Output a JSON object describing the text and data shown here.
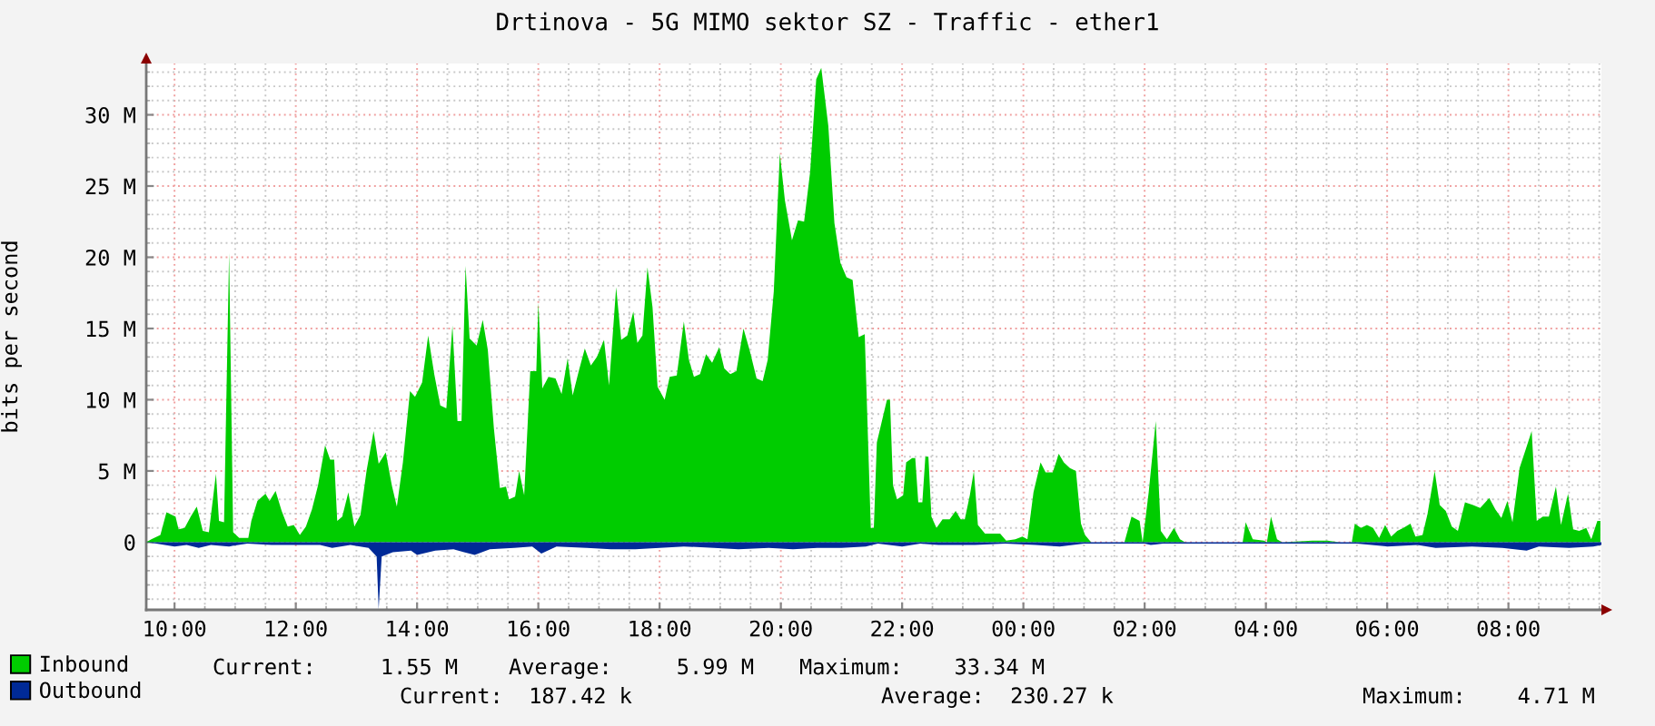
{
  "chart_data": {
    "type": "area",
    "title": "Drtinova - 5G MIMO sektor SZ - Traffic - ether1",
    "ylabel": "bits per second",
    "xlim": [
      "2000-01-01T09:32",
      "2000-01-02T09:32"
    ],
    "ylim": [
      -4.75,
      33.6
    ],
    "xticks": [
      {
        "value": "2000-01-01T10:00",
        "label": "10:00"
      },
      {
        "value": "2000-01-01T10:30",
        "label": null
      },
      {
        "value": "2000-01-01T11:00",
        "label": null
      },
      {
        "value": "2000-01-01T11:30",
        "label": null
      },
      {
        "value": "2000-01-01T12:00",
        "label": "12:00"
      },
      {
        "value": "2000-01-01T12:30",
        "label": null
      },
      {
        "value": "2000-01-01T13:00",
        "label": null
      },
      {
        "value": "2000-01-01T13:30",
        "label": null
      },
      {
        "value": "2000-01-01T14:00",
        "label": "14:00"
      },
      {
        "value": "2000-01-01T14:30",
        "label": null
      },
      {
        "value": "2000-01-01T15:00",
        "label": null
      },
      {
        "value": "2000-01-01T15:30",
        "label": null
      },
      {
        "value": "2000-01-01T16:00",
        "label": "16:00"
      },
      {
        "value": "2000-01-01T16:30",
        "label": null
      },
      {
        "value": "2000-01-01T17:00",
        "label": null
      },
      {
        "value": "2000-01-01T17:30",
        "label": null
      },
      {
        "value": "2000-01-01T18:00",
        "label": "18:00"
      },
      {
        "value": "2000-01-01T18:30",
        "label": null
      },
      {
        "value": "2000-01-01T19:00",
        "label": null
      },
      {
        "value": "2000-01-01T19:30",
        "label": null
      },
      {
        "value": "2000-01-01T20:00",
        "label": "20:00"
      },
      {
        "value": "2000-01-01T20:30",
        "label": null
      },
      {
        "value": "2000-01-01T21:00",
        "label": null
      },
      {
        "value": "2000-01-01T21:30",
        "label": null
      },
      {
        "value": "2000-01-01T22:00",
        "label": "22:00"
      },
      {
        "value": "2000-01-01T22:30",
        "label": null
      },
      {
        "value": "2000-01-01T23:00",
        "label": null
      },
      {
        "value": "2000-01-01T23:30",
        "label": null
      },
      {
        "value": "2000-01-02T00:00",
        "label": "00:00"
      },
      {
        "value": "2000-01-02T00:30",
        "label": null
      },
      {
        "value": "2000-01-02T01:00",
        "label": null
      },
      {
        "value": "2000-01-02T01:30",
        "label": null
      },
      {
        "value": "2000-01-02T02:00",
        "label": "02:00"
      },
      {
        "value": "2000-01-02T02:30",
        "label": null
      },
      {
        "value": "2000-01-02T03:00",
        "label": null
      },
      {
        "value": "2000-01-02T03:30",
        "label": null
      },
      {
        "value": "2000-01-02T04:00",
        "label": "04:00"
      },
      {
        "value": "2000-01-02T04:30",
        "label": null
      },
      {
        "value": "2000-01-02T05:00",
        "label": null
      },
      {
        "value": "2000-01-02T05:30",
        "label": null
      },
      {
        "value": "2000-01-02T06:00",
        "label": "06:00"
      },
      {
        "value": "2000-01-02T06:30",
        "label": null
      },
      {
        "value": "2000-01-02T07:00",
        "label": null
      },
      {
        "value": "2000-01-02T07:30",
        "label": null
      },
      {
        "value": "2000-01-02T08:00",
        "label": "08:00"
      },
      {
        "value": "2000-01-02T08:30",
        "label": null
      },
      {
        "value": "2000-01-02T09:00",
        "label": null
      },
      {
        "value": "2000-01-02T09:30",
        "label": null
      }
    ],
    "yticks": [
      {
        "value": -4,
        "label": null
      },
      {
        "value": -3,
        "label": null
      },
      {
        "value": -2,
        "label": null
      },
      {
        "value": -1,
        "label": null
      },
      0,
      {
        "value": 1,
        "label": null
      },
      {
        "value": 2,
        "label": null
      },
      {
        "value": 3,
        "label": null
      },
      {
        "value": 4,
        "label": null
      },
      {
        "value": 5,
        "label": "5 M"
      },
      {
        "value": 6,
        "label": null
      },
      {
        "value": 7,
        "label": null
      },
      {
        "value": 8,
        "label": null
      },
      {
        "value": 9,
        "label": null
      },
      {
        "value": 10,
        "label": "10 M"
      },
      {
        "value": 11,
        "label": null
      },
      {
        "value": 12,
        "label": null
      },
      {
        "value": 13,
        "label": null
      },
      {
        "value": 14,
        "label": null
      },
      {
        "value": 15,
        "label": "15 M"
      },
      {
        "value": 16,
        "label": null
      },
      {
        "value": 17,
        "label": null
      },
      {
        "value": 18,
        "label": null
      },
      {
        "value": 19,
        "label": null
      },
      {
        "value": 20,
        "label": "20 M"
      },
      {
        "value": 21,
        "label": null
      },
      {
        "value": 22,
        "label": null
      },
      {
        "value": 23,
        "label": null
      },
      {
        "value": 24,
        "label": null
      },
      {
        "value": 25,
        "label": "25 M"
      },
      {
        "value": 26,
        "label": null
      },
      {
        "value": 27,
        "label": null
      },
      {
        "value": 28,
        "label": null
      },
      {
        "value": 29,
        "label": null
      },
      {
        "value": 30,
        "label": "30 M"
      },
      {
        "value": 31,
        "label": null
      },
      {
        "value": 32,
        "label": null
      },
      {
        "value": 33,
        "label": null
      }
    ],
    "grid": true,
    "legend": "bottom",
    "annotations": [
      "Current:     1.55 M",
      "Average:     5.99 M",
      "Maximum:    33.34 M",
      "Current:  187.42 k",
      "Average:  230.27 k",
      "Maximum:    4.71 M"
    ],
    "series": [
      {
        "name": "Inbound",
        "color": "#00cc00",
        "x": [
          "2000-01-01T09:32",
          "2000-01-01T09:37",
          "2000-01-01T09:46",
          "2000-01-01T09:52",
          "2000-01-01T10:01",
          "2000-01-01T10:04",
          "2000-01-01T10:10",
          "2000-01-01T10:16",
          "2000-01-01T10:22",
          "2000-01-01T10:28",
          "2000-01-01T10:34",
          "2000-01-01T10:41",
          "2000-01-01T10:44",
          "2000-01-01T10:49",
          "2000-01-01T10:54",
          "2000-01-01T10:58",
          "2000-01-01T11:04",
          "2000-01-01T11:13",
          "2000-01-01T11:16",
          "2000-01-01T11:22",
          "2000-01-01T11:30",
          "2000-01-01T11:34",
          "2000-01-01T11:40",
          "2000-01-01T11:46",
          "2000-01-01T11:52",
          "2000-01-01T11:58",
          "2000-01-01T12:04",
          "2000-01-01T12:10",
          "2000-01-01T12:16",
          "2000-01-01T12:22",
          "2000-01-01T12:29",
          "2000-01-01T12:34",
          "2000-01-01T12:38",
          "2000-01-01T12:41",
          "2000-01-01T12:46",
          "2000-01-01T12:52",
          "2000-01-01T12:58",
          "2000-01-01T13:04",
          "2000-01-01T13:10",
          "2000-01-01T13:17",
          "2000-01-01T13:22",
          "2000-01-01T13:29",
          "2000-01-01T13:35",
          "2000-01-01T13:40",
          "2000-01-01T13:46",
          "2000-01-01T13:53",
          "2000-01-01T13:58",
          "2000-01-01T14:05",
          "2000-01-01T14:11",
          "2000-01-01T14:17",
          "2000-01-01T14:23",
          "2000-01-01T14:29",
          "2000-01-01T14:35",
          "2000-01-01T14:40",
          "2000-01-01T14:44",
          "2000-01-01T14:48",
          "2000-01-01T14:52",
          "2000-01-01T14:59",
          "2000-01-01T15:05",
          "2000-01-01T15:10",
          "2000-01-01T15:16",
          "2000-01-01T15:22",
          "2000-01-01T15:28",
          "2000-01-01T15:31",
          "2000-01-01T15:37",
          "2000-01-01T15:41",
          "2000-01-01T15:46",
          "2000-01-01T15:52",
          "2000-01-01T15:58",
          "2000-01-01T16:00",
          "2000-01-01T16:04",
          "2000-01-01T16:10",
          "2000-01-01T16:17",
          "2000-01-01T16:23",
          "2000-01-01T16:29",
          "2000-01-01T16:34",
          "2000-01-01T16:40",
          "2000-01-01T16:46",
          "2000-01-01T16:52",
          "2000-01-01T16:58",
          "2000-01-01T17:05",
          "2000-01-01T17:10",
          "2000-01-01T17:17",
          "2000-01-01T17:22",
          "2000-01-01T17:28",
          "2000-01-01T17:34",
          "2000-01-01T17:38",
          "2000-01-01T17:43",
          "2000-01-01T17:48",
          "2000-01-01T17:53",
          "2000-01-01T17:58",
          "2000-01-01T18:05",
          "2000-01-01T18:10",
          "2000-01-01T18:17",
          "2000-01-01T18:24",
          "2000-01-01T18:29",
          "2000-01-01T18:34",
          "2000-01-01T18:40",
          "2000-01-01T18:46",
          "2000-01-01T18:52",
          "2000-01-01T18:59",
          "2000-01-01T19:04",
          "2000-01-01T19:10",
          "2000-01-01T19:16",
          "2000-01-01T19:23",
          "2000-01-01T19:29",
          "2000-01-01T19:36",
          "2000-01-01T19:42",
          "2000-01-01T19:47",
          "2000-01-01T19:53",
          "2000-01-01T19:59",
          "2000-01-01T20:04",
          "2000-01-01T20:11",
          "2000-01-01T20:17",
          "2000-01-01T20:23",
          "2000-01-01T20:29",
          "2000-01-01T20:35",
          "2000-01-01T20:40",
          "2000-01-01T20:47",
          "2000-01-01T20:53",
          "2000-01-01T20:59",
          "2000-01-01T21:05",
          "2000-01-01T21:11",
          "2000-01-01T21:17",
          "2000-01-01T21:23",
          "2000-01-01T21:29",
          "2000-01-01T21:32",
          "2000-01-01T21:35",
          "2000-01-01T21:41",
          "2000-01-01T21:45",
          "2000-01-01T21:48",
          "2000-01-01T21:51",
          "2000-01-01T21:55",
          "2000-01-01T22:01",
          "2000-01-01T22:04",
          "2000-01-01T22:10",
          "2000-01-01T22:13",
          "2000-01-01T22:16",
          "2000-01-01T22:20",
          "2000-01-01T22:23",
          "2000-01-01T22:26",
          "2000-01-01T22:29",
          "2000-01-01T22:34",
          "2000-01-01T22:40",
          "2000-01-01T22:47",
          "2000-01-01T22:53",
          "2000-01-01T22:58",
          "2000-01-01T23:02",
          "2000-01-01T23:07",
          "2000-01-01T23:11",
          "2000-01-01T23:15",
          "2000-01-01T23:22",
          "2000-01-01T23:37",
          "2000-01-01T23:43",
          "2000-01-01T23:52",
          "2000-01-01T23:59",
          "2000-01-02T00:04",
          "2000-01-02T00:10",
          "2000-01-02T00:17",
          "2000-01-02T00:22",
          "2000-01-02T00:29",
          "2000-01-02T00:35",
          "2000-01-02T00:40",
          "2000-01-02T00:46",
          "2000-01-02T00:52",
          "2000-01-02T00:57",
          "2000-01-02T01:01",
          "2000-01-02T01:07",
          "2000-01-02T01:40",
          "2000-01-02T01:47",
          "2000-01-02T01:55",
          "2000-01-02T01:58",
          "2000-01-02T02:04",
          "2000-01-02T02:11",
          "2000-01-02T02:16",
          "2000-01-02T02:22",
          "2000-01-02T02:29",
          "2000-01-02T02:35",
          "2000-01-02T02:40",
          "2000-01-02T03:37",
          "2000-01-02T03:40",
          "2000-01-02T03:47",
          "2000-01-02T03:58",
          "2000-01-02T04:01",
          "2000-01-02T04:05",
          "2000-01-02T04:11",
          "2000-01-02T04:16",
          "2000-01-02T04:46",
          "2000-01-02T05:01",
          "2000-01-02T05:13",
          "2000-01-02T05:25",
          "2000-01-02T05:28",
          "2000-01-02T05:34",
          "2000-01-02T05:40",
          "2000-01-02T05:46",
          "2000-01-02T05:52",
          "2000-01-02T05:58",
          "2000-01-02T06:04",
          "2000-01-02T06:10",
          "2000-01-02T06:16",
          "2000-01-02T06:23",
          "2000-01-02T06:28",
          "2000-01-02T06:35",
          "2000-01-02T06:40",
          "2000-01-02T06:47",
          "2000-01-02T06:52",
          "2000-01-02T06:58",
          "2000-01-02T07:04",
          "2000-01-02T07:10",
          "2000-01-02T07:17",
          "2000-01-02T07:25",
          "2000-01-02T07:32",
          "2000-01-02T07:41",
          "2000-01-02T07:47",
          "2000-01-02T07:53",
          "2000-01-02T07:59",
          "2000-01-02T08:04",
          "2000-01-02T08:11",
          "2000-01-02T08:17",
          "2000-01-02T08:23",
          "2000-01-02T08:28",
          "2000-01-02T08:34",
          "2000-01-02T08:40",
          "2000-01-02T08:47",
          "2000-01-02T08:52",
          "2000-01-02T08:59",
          "2000-01-02T09:04",
          "2000-01-02T09:10",
          "2000-01-02T09:17",
          "2000-01-02T09:22",
          "2000-01-02T09:28",
          "2000-01-02T09:31"
        ],
        "values": [
          0,
          0.2,
          0.5,
          2.1,
          1.8,
          0.9,
          1.0,
          1.8,
          2.5,
          0.8,
          0.7,
          4.8,
          1.5,
          1.4,
          20.3,
          0.7,
          0.3,
          0.3,
          1.5,
          2.9,
          3.4,
          2.9,
          3.6,
          2.2,
          1.1,
          1.2,
          0.5,
          1.1,
          2.3,
          4.0,
          6.8,
          5.8,
          5.8,
          1.5,
          1.8,
          3.5,
          1.1,
          1.9,
          5.0,
          7.8,
          5.5,
          6.3,
          4.0,
          2.5,
          5.6,
          10.6,
          10.2,
          11.2,
          14.5,
          11.8,
          9.6,
          9.4,
          15.2,
          8.5,
          8.5,
          19.4,
          14.3,
          13.8,
          15.6,
          13.5,
          8.0,
          3.8,
          3.9,
          3.0,
          3.2,
          5.0,
          3.3,
          12.0,
          12.0,
          16.8,
          10.8,
          11.6,
          11.5,
          10.4,
          12.9,
          10.3,
          12.0,
          13.6,
          12.4,
          13.0,
          14.2,
          11.0,
          17.9,
          14.2,
          14.5,
          16.2,
          14.0,
          14.5,
          19.3,
          16.5,
          10.9,
          10.0,
          11.6,
          11.7,
          15.5,
          12.8,
          11.6,
          11.8,
          13.2,
          12.6,
          13.7,
          12.2,
          11.8,
          12.0,
          15.0,
          13.5,
          11.5,
          11.3,
          12.8,
          17.6,
          27.3,
          24.0,
          21.2,
          22.6,
          22.5,
          26.0,
          32.5,
          33.3,
          29.2,
          22.4,
          19.6,
          18.6,
          18.4,
          14.4,
          14.6,
          1.0,
          1.0,
          7.0,
          8.8,
          10.0,
          10.0,
          4.0,
          3.0,
          3.3,
          5.6,
          5.9,
          5.9,
          2.8,
          2.8,
          6.0,
          6.0,
          1.8,
          1.0,
          1.6,
          1.6,
          2.2,
          1.6,
          1.6,
          3.3,
          5.0,
          1.2,
          0.6,
          0.6,
          0.1,
          0.2,
          0.4,
          0.2,
          3.5,
          5.6,
          4.9,
          4.9,
          6.2,
          5.6,
          5.2,
          5.0,
          1.3,
          0.5,
          0,
          0,
          1.8,
          1.5,
          0,
          3.5,
          8.5,
          0.8,
          0.2,
          1.0,
          0.2,
          0,
          0,
          1.4,
          0.2,
          0.1,
          0,
          1.8,
          0.2,
          0,
          0.1,
          0.1,
          0,
          0,
          1.3,
          1.0,
          1.2,
          1.0,
          0.3,
          1.2,
          0.4,
          0.8,
          1.0,
          1.3,
          0.4,
          0.5,
          2.0,
          5.0,
          2.6,
          2.2,
          1.1,
          0.8,
          2.8,
          2.6,
          2.4,
          3.1,
          2.3,
          1.7,
          2.9,
          1.4,
          5.2,
          6.5,
          7.8,
          1.5,
          1.8,
          1.8,
          3.9,
          1.2,
          3.4,
          0.9,
          0.8,
          1.0,
          0.2,
          1.5,
          1.5
        ]
      },
      {
        "name": "Outbound",
        "color": "#002a97",
        "x": [
          "2000-01-01T09:32",
          "2000-01-01T09:42",
          "2000-01-01T10:00",
          "2000-01-01T10:12",
          "2000-01-01T10:24",
          "2000-01-01T10:36",
          "2000-01-01T10:54",
          "2000-01-01T11:12",
          "2000-01-01T11:36",
          "2000-01-01T12:00",
          "2000-01-01T12:24",
          "2000-01-01T12:36",
          "2000-01-01T12:54",
          "2000-01-01T13:12",
          "2000-01-01T13:20",
          "2000-01-01T13:22",
          "2000-01-01T13:25",
          "2000-01-01T13:36",
          "2000-01-01T13:54",
          "2000-01-01T14:00",
          "2000-01-01T14:18",
          "2000-01-01T14:36",
          "2000-01-01T14:57",
          "2000-01-01T15:12",
          "2000-01-01T15:36",
          "2000-01-01T15:54",
          "2000-01-01T16:03",
          "2000-01-01T16:18",
          "2000-01-01T16:48",
          "2000-01-01T17:12",
          "2000-01-01T17:36",
          "2000-01-01T18:00",
          "2000-01-01T18:24",
          "2000-01-01T18:54",
          "2000-01-01T19:18",
          "2000-01-01T19:48",
          "2000-01-01T20:12",
          "2000-01-01T20:36",
          "2000-01-01T21:00",
          "2000-01-01T21:24",
          "2000-01-01T21:36",
          "2000-01-01T22:00",
          "2000-01-01T22:18",
          "2000-01-01T22:36",
          "2000-01-01T23:12",
          "2000-01-01T23:42",
          "2000-01-02T00:12",
          "2000-01-02T00:36",
          "2000-01-02T01:00",
          "2000-01-02T02:00",
          "2000-01-02T02:06",
          "2000-01-02T02:18",
          "2000-01-02T04:00",
          "2000-01-02T05:30",
          "2000-01-02T06:00",
          "2000-01-02T06:30",
          "2000-01-02T06:48",
          "2000-01-02T07:24",
          "2000-01-02T07:54",
          "2000-01-02T08:18",
          "2000-01-02T08:30",
          "2000-01-02T09:00",
          "2000-01-02T09:24",
          "2000-01-02T09:32"
        ],
        "values": [
          0,
          -0.1,
          -0.3,
          -0.2,
          -0.4,
          -0.2,
          -0.3,
          -0.1,
          -0.2,
          -0.2,
          -0.2,
          -0.4,
          -0.2,
          -0.4,
          -1.0,
          -4.7,
          -1.0,
          -0.7,
          -0.6,
          -0.9,
          -0.6,
          -0.5,
          -0.9,
          -0.5,
          -0.4,
          -0.3,
          -0.8,
          -0.3,
          -0.4,
          -0.5,
          -0.5,
          -0.4,
          -0.3,
          -0.4,
          -0.5,
          -0.4,
          -0.5,
          -0.4,
          -0.4,
          -0.3,
          -0.1,
          -0.3,
          -0.1,
          -0.2,
          -0.2,
          -0.1,
          -0.2,
          -0.3,
          -0.1,
          -0.1,
          -0.2,
          -0.1,
          -0.1,
          -0.1,
          -0.3,
          -0.2,
          -0.4,
          -0.3,
          -0.4,
          -0.6,
          -0.3,
          -0.4,
          -0.3,
          -0.2
        ]
      }
    ]
  }
}
